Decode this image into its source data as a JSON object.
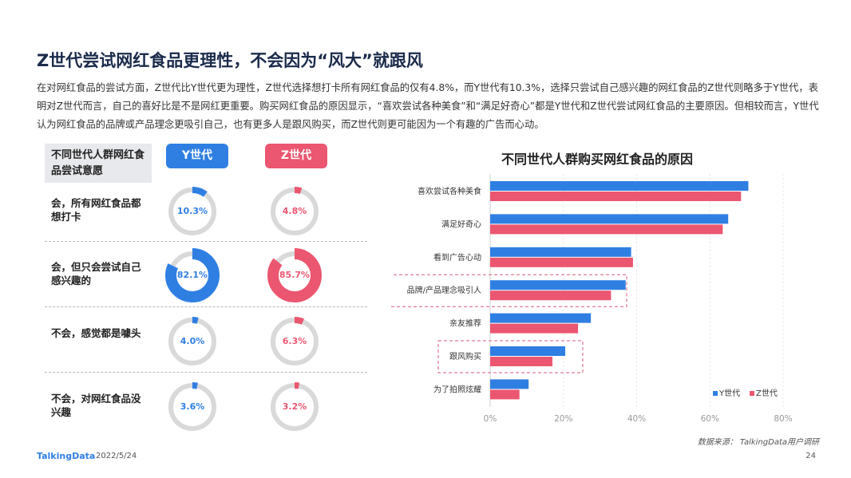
{
  "title": "Z世代尝试网红食品更理性，不会因为“风大”就跟风",
  "intro": "在对网红食品的尝试方面，Z世代比Y世代更为理性，Z世代选择想打卡所有网红食品的仅有4.8%，而Y世代有10.3%，选择只尝试自己感兴趣的网红食品的Z世代则略多于Y世代，表明对Z世代而言，自己的喜好比是不是网红更重要。购买网红食品的原因显示，“喜欢尝试各种美食”和“满足好奇心”都是Y世代和Z世代尝试网红食品的主要原因。但相较而言，Y世代认为网红食品的品牌或产品理念更吸引自己，也有更多人是跟风购买，而Z世代则更可能因为一个有趣的广告而心动。",
  "willingness": {
    "header": "不同世代人群网红食品尝试意愿",
    "gen_y": "Y世代",
    "gen_z": "Z世代",
    "rows": [
      {
        "label": "会，所有网红食品都想打卡",
        "y": 10.3,
        "z": 4.8,
        "y_text": "10.3%",
        "z_text": "4.8%"
      },
      {
        "label": "会，但只会尝试自己感兴趣的",
        "y": 82.1,
        "z": 85.7,
        "y_text": "82.1%",
        "z_text": "85.7%"
      },
      {
        "label": "不会，感觉都是噱头",
        "y": 4.0,
        "z": 6.3,
        "y_text": "4.0%",
        "z_text": "6.3%"
      },
      {
        "label": "不会，对网红食品没兴趣",
        "y": 3.6,
        "z": 3.2,
        "y_text": "3.6%",
        "z_text": "3.2%"
      }
    ]
  },
  "colors": {
    "y": "#2f7fe3",
    "z": "#eb5670",
    "track": "#d9d9d9",
    "highlight": "#d85a77"
  },
  "chart_data": {
    "type": "bar",
    "orientation": "horizontal",
    "title": "不同世代人群购买网红食品的原因",
    "categories": [
      "喜欢尝试各种美食",
      "满足好奇心",
      "看到广告心动",
      "品牌/产品理念吸引人",
      "亲友推荐",
      "跟风购买",
      "为了拍照炫耀"
    ],
    "series": [
      {
        "name": "Y世代",
        "values": [
          70.5,
          65.0,
          38.5,
          37.0,
          27.5,
          20.5,
          10.5
        ]
      },
      {
        "name": "Z世代",
        "values": [
          68.5,
          63.5,
          39.0,
          33.0,
          24.0,
          17.0,
          8.0
        ]
      }
    ],
    "xlim": [
      0,
      80
    ],
    "xticks": [
      "0%",
      "20%",
      "40%",
      "60%",
      "80%"
    ],
    "highlighted": [
      "品牌/产品理念吸引人",
      "跟风购买"
    ],
    "legend": "bottom-right"
  },
  "source": "数据来源： TalkingData用户调研",
  "footer": {
    "logo": "TalkingData",
    "date": "2022/5/24",
    "page": "24"
  }
}
